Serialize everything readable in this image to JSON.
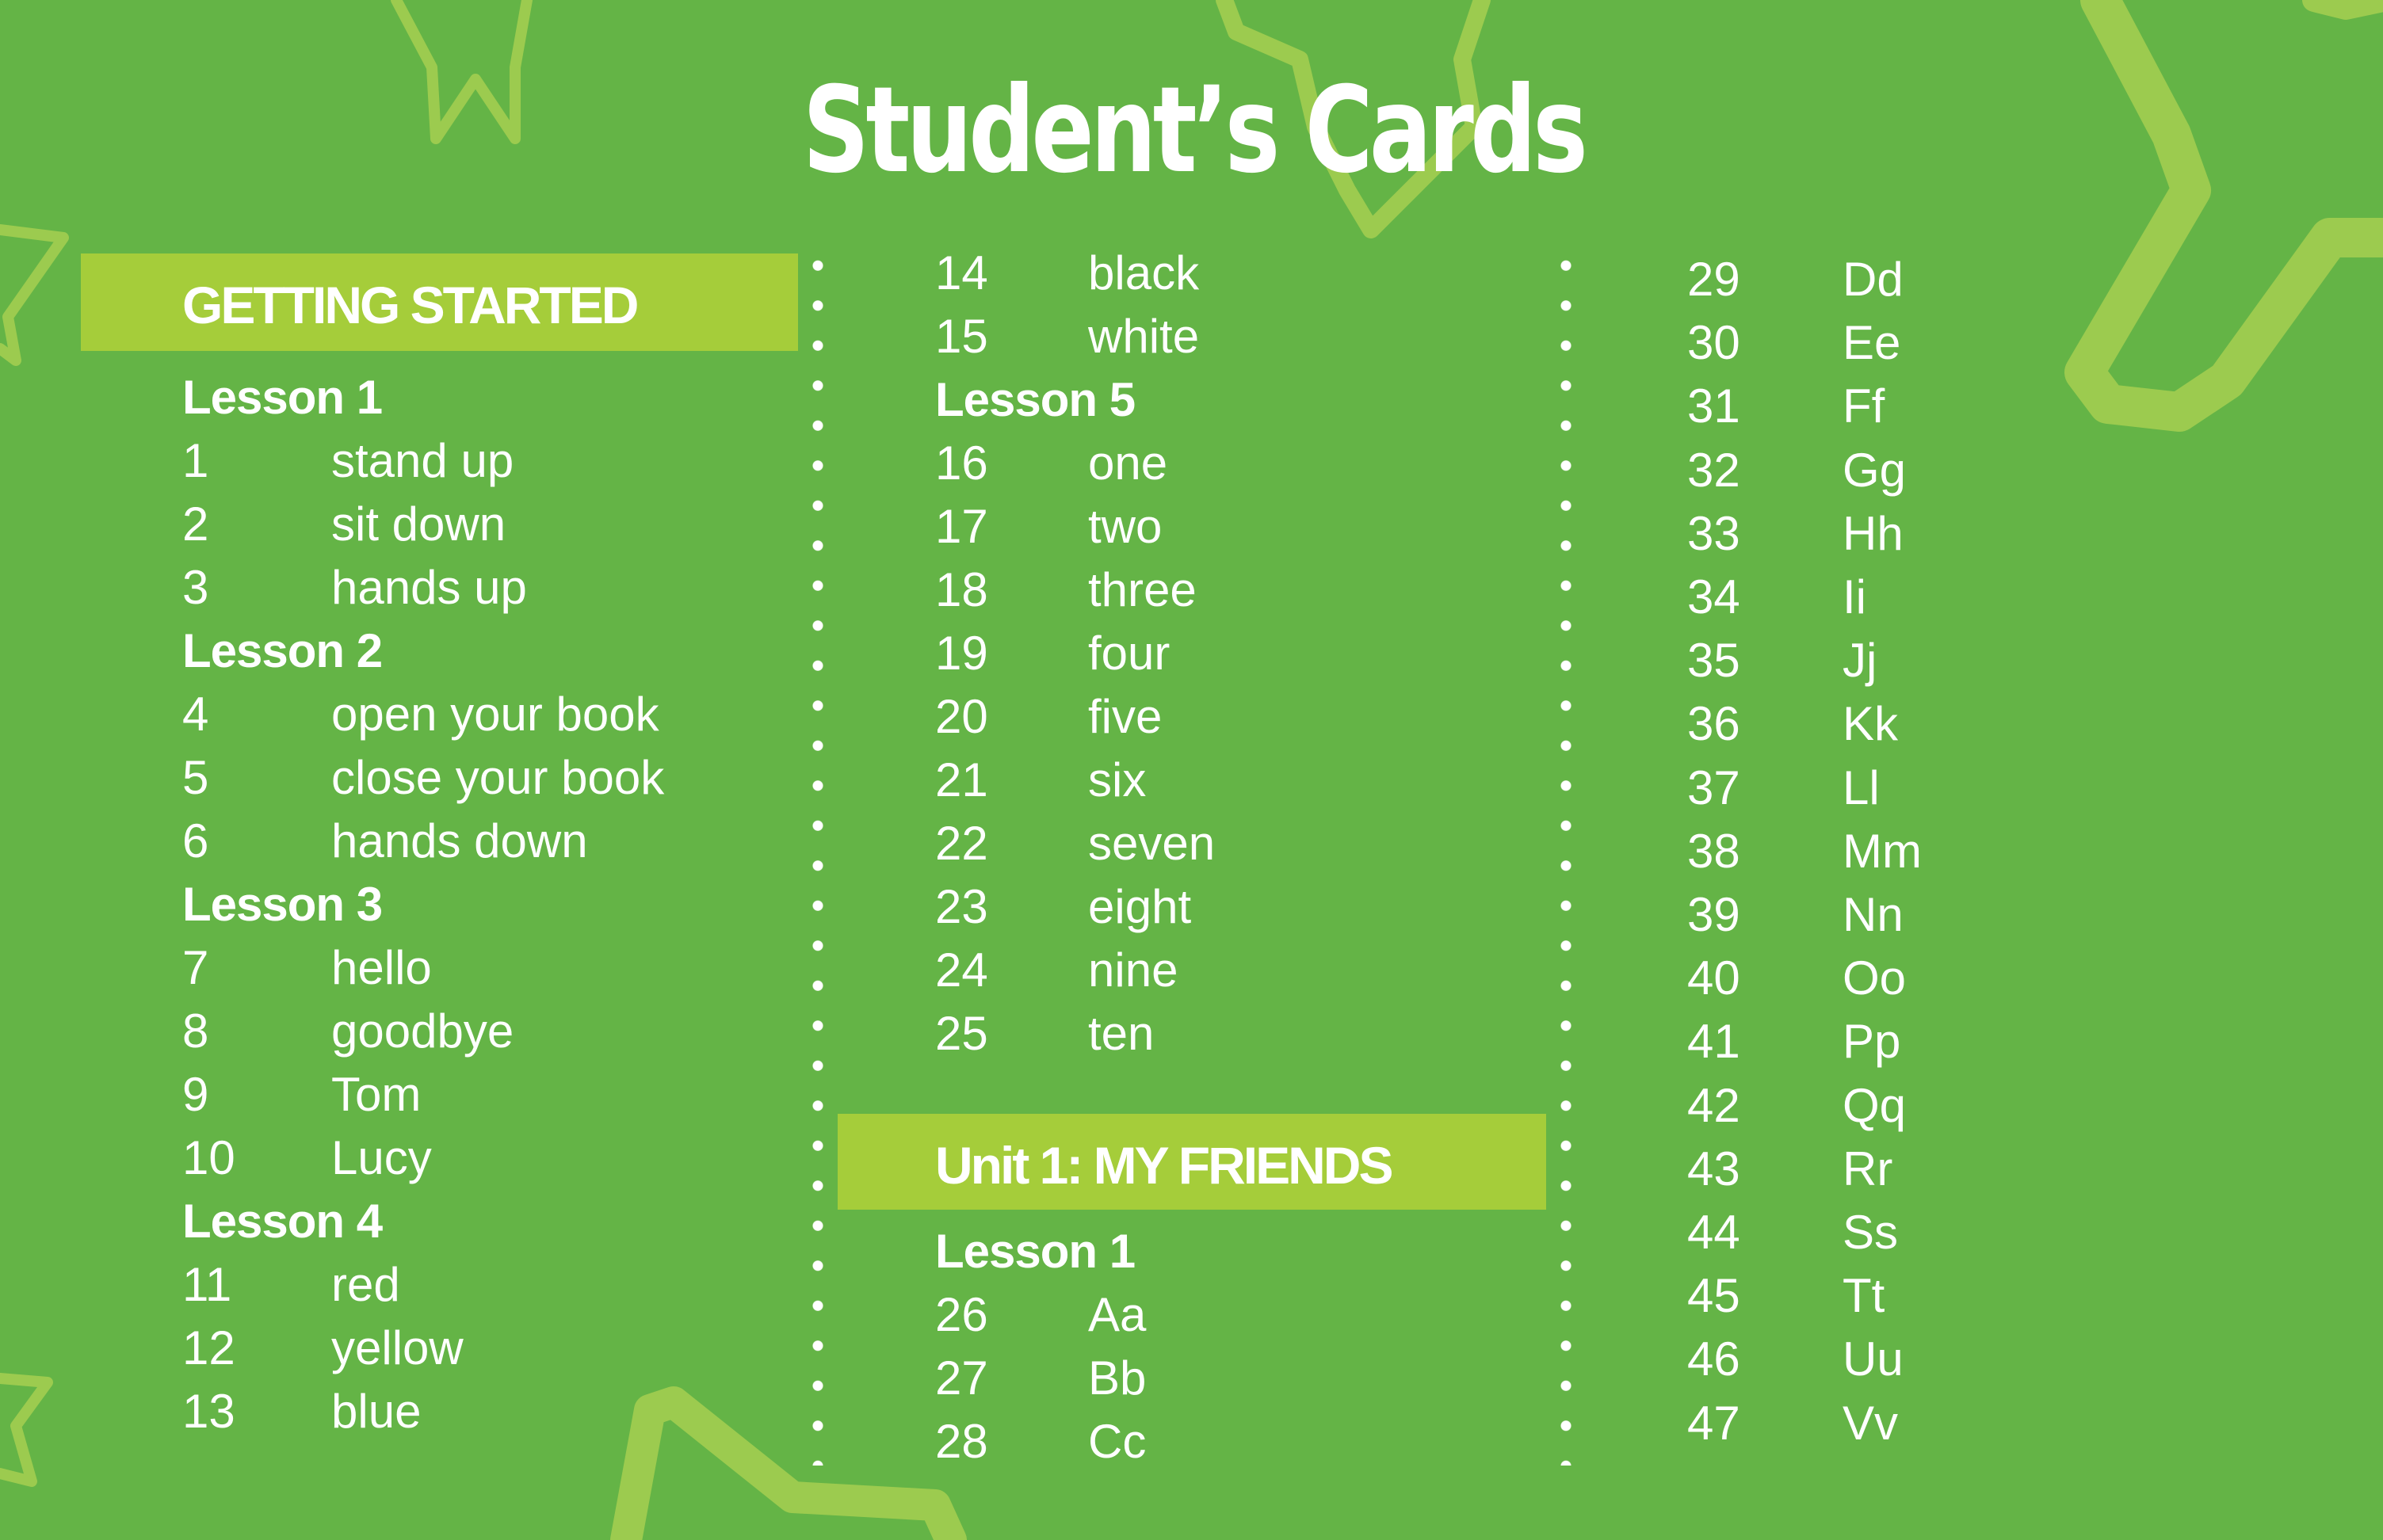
{
  "title": "Student’s Cards",
  "colors": {
    "background": "#64b446",
    "section_bar": "#a5cd3a",
    "decoration": "#9ccb4f",
    "text": "#ffffff"
  },
  "sections": [
    {
      "label": "GETTING STARTED"
    },
    {
      "label": "Unit 1: MY FRIENDS"
    }
  ],
  "columns": [
    {
      "items": [
        {
          "lesson": "Lesson 1"
        },
        {
          "num": "1",
          "word": "stand up"
        },
        {
          "num": "2",
          "word": "sit down"
        },
        {
          "num": "3",
          "word": "hands up"
        },
        {
          "lesson": "Lesson 2"
        },
        {
          "num": "4",
          "word": "open your book"
        },
        {
          "num": "5",
          "word": "close your book"
        },
        {
          "num": "6",
          "word": "hands down"
        },
        {
          "lesson": "Lesson 3"
        },
        {
          "num": "7",
          "word": "hello"
        },
        {
          "num": "8",
          "word": "goodbye"
        },
        {
          "num": "9",
          "word": "Tom"
        },
        {
          "num": "10",
          "word": "Lucy"
        },
        {
          "lesson": "Lesson 4"
        },
        {
          "num": "11",
          "word": "red"
        },
        {
          "num": "12",
          "word": "yellow"
        },
        {
          "num": "13",
          "word": "blue"
        }
      ]
    },
    {
      "items": [
        {
          "num": "14",
          "word": "black"
        },
        {
          "num": "15",
          "word": "white"
        },
        {
          "lesson": "Lesson 5"
        },
        {
          "num": "16",
          "word": "one"
        },
        {
          "num": "17",
          "word": "two"
        },
        {
          "num": "18",
          "word": "three"
        },
        {
          "num": "19",
          "word": "four"
        },
        {
          "num": "20",
          "word": "five"
        },
        {
          "num": "21",
          "word": "six"
        },
        {
          "num": "22",
          "word": "seven"
        },
        {
          "num": "23",
          "word": "eight"
        },
        {
          "num": "24",
          "word": "nine"
        },
        {
          "num": "25",
          "word": "ten"
        }
      ],
      "unit_items": [
        {
          "lesson": "Lesson 1"
        },
        {
          "num": "26",
          "word": "Aa"
        },
        {
          "num": "27",
          "word": "Bb"
        },
        {
          "num": "28",
          "word": "Cc"
        }
      ]
    },
    {
      "items": [
        {
          "num": "29",
          "word": "Dd"
        },
        {
          "num": "30",
          "word": "Ee"
        },
        {
          "num": "31",
          "word": "Ff"
        },
        {
          "num": "32",
          "word": "Gg"
        },
        {
          "num": "33",
          "word": "Hh"
        },
        {
          "num": "34",
          "word": "Ii"
        },
        {
          "num": "35",
          "word": "Jj"
        },
        {
          "num": "36",
          "word": "Kk"
        },
        {
          "num": "37",
          "word": "Ll"
        },
        {
          "num": "38",
          "word": "Mm"
        },
        {
          "num": "39",
          "word": "Nn"
        },
        {
          "num": "40",
          "word": "Oo"
        },
        {
          "num": "41",
          "word": "Pp"
        },
        {
          "num": "42",
          "word": "Qq"
        },
        {
          "num": "43",
          "word": "Rr"
        },
        {
          "num": "44",
          "word": "Ss"
        },
        {
          "num": "45",
          "word": "Tt"
        },
        {
          "num": "46",
          "word": "Uu"
        },
        {
          "num": "47",
          "word": "Vv"
        }
      ]
    }
  ]
}
